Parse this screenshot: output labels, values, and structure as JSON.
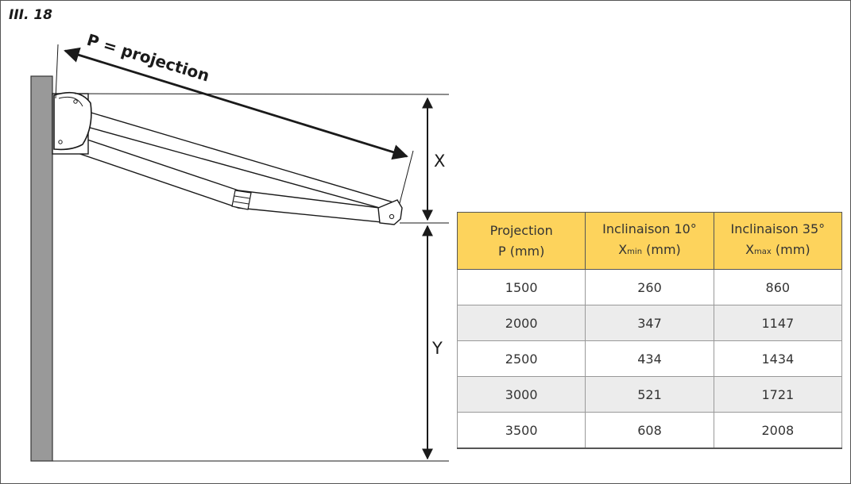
{
  "figure": {
    "label": "III. 18"
  },
  "diagram": {
    "projection_label": "P = projection",
    "x_label": "X",
    "y_label": "Y"
  },
  "colors": {
    "header_fill": "#fdd35c",
    "alt_row_fill": "#ececec",
    "wall": "#999999"
  },
  "table": {
    "headers": [
      {
        "line1": "Projection",
        "line2_main": "P (mm)",
        "line2_sub": "",
        "line2_unit": ""
      },
      {
        "line1": "Inclinaison 10°",
        "line2_main": "X",
        "line2_sub": "min",
        "line2_unit": " (mm)"
      },
      {
        "line1": "Inclinaison 35°",
        "line2_main": "X",
        "line2_sub": "max",
        "line2_unit": " (mm)"
      }
    ],
    "rows": [
      [
        "1500",
        "260",
        "860"
      ],
      [
        "2000",
        "347",
        "1147"
      ],
      [
        "2500",
        "434",
        "1434"
      ],
      [
        "3000",
        "521",
        "1721"
      ],
      [
        "3500",
        "608",
        "2008"
      ]
    ]
  }
}
